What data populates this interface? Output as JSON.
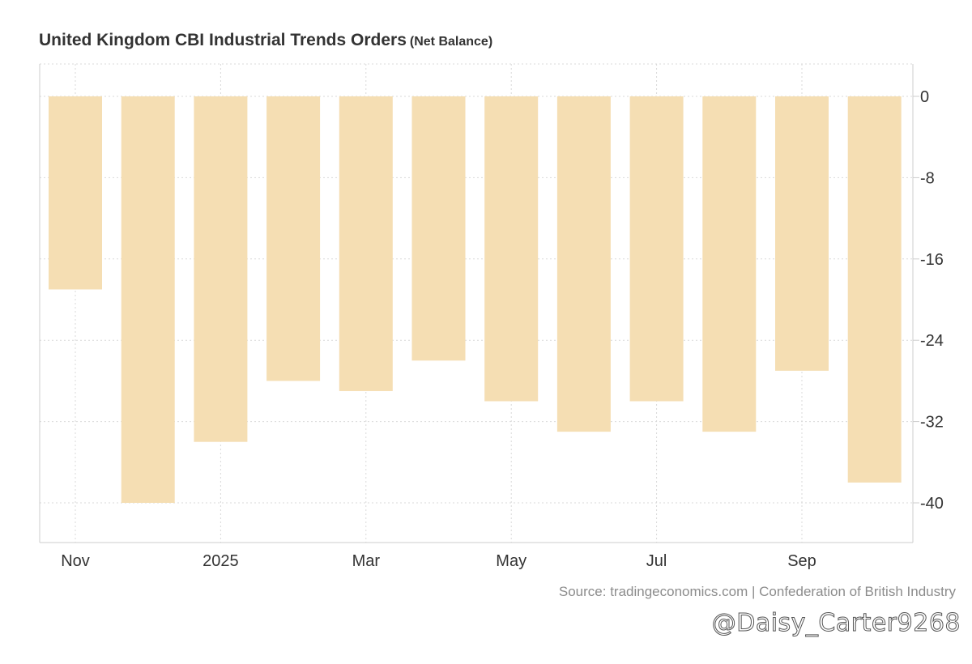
{
  "title": "United Kingdom CBI Industrial Trends Orders",
  "title_unit": "(Net Balance)",
  "source": "Source: tradingeconomics.com | Confederation of British Industry",
  "watermark": "@Daisy_Carter9268",
  "colors": {
    "bar": "#f5deb3",
    "grid": "#d9d9d9",
    "axis": "#cccccc",
    "tick_text": "#333333"
  },
  "chart_data": {
    "type": "bar",
    "title": "United Kingdom CBI Industrial Trends Orders (Net Balance)",
    "categories": [
      "Nov 2024",
      "Dec 2024",
      "Jan 2025",
      "Feb 2025",
      "Mar 2025",
      "Apr 2025",
      "May 2025",
      "Jun 2025",
      "Jul 2025",
      "Aug 2025",
      "Sep 2025",
      "Oct 2025"
    ],
    "values": [
      -19,
      -40,
      -34,
      -28,
      -29,
      -26,
      -30,
      -33,
      -30,
      -33,
      -27,
      -38
    ],
    "x_tick_labels": [
      {
        "label": "Nov",
        "index": 0
      },
      {
        "label": "2025",
        "index": 2
      },
      {
        "label": "Mar",
        "index": 4
      },
      {
        "label": "May",
        "index": 6
      },
      {
        "label": "Jul",
        "index": 8
      },
      {
        "label": "Sep",
        "index": 10
      }
    ],
    "y_ticks": [
      0,
      -8,
      -16,
      -24,
      -32,
      -40
    ],
    "y_tick_labels": [
      "0",
      "-8",
      "-16",
      "-24",
      "-32",
      "-40"
    ],
    "ylim": [
      -44,
      3
    ],
    "y_axis_side": "right",
    "grid": true,
    "xlabel": "",
    "ylabel": ""
  }
}
